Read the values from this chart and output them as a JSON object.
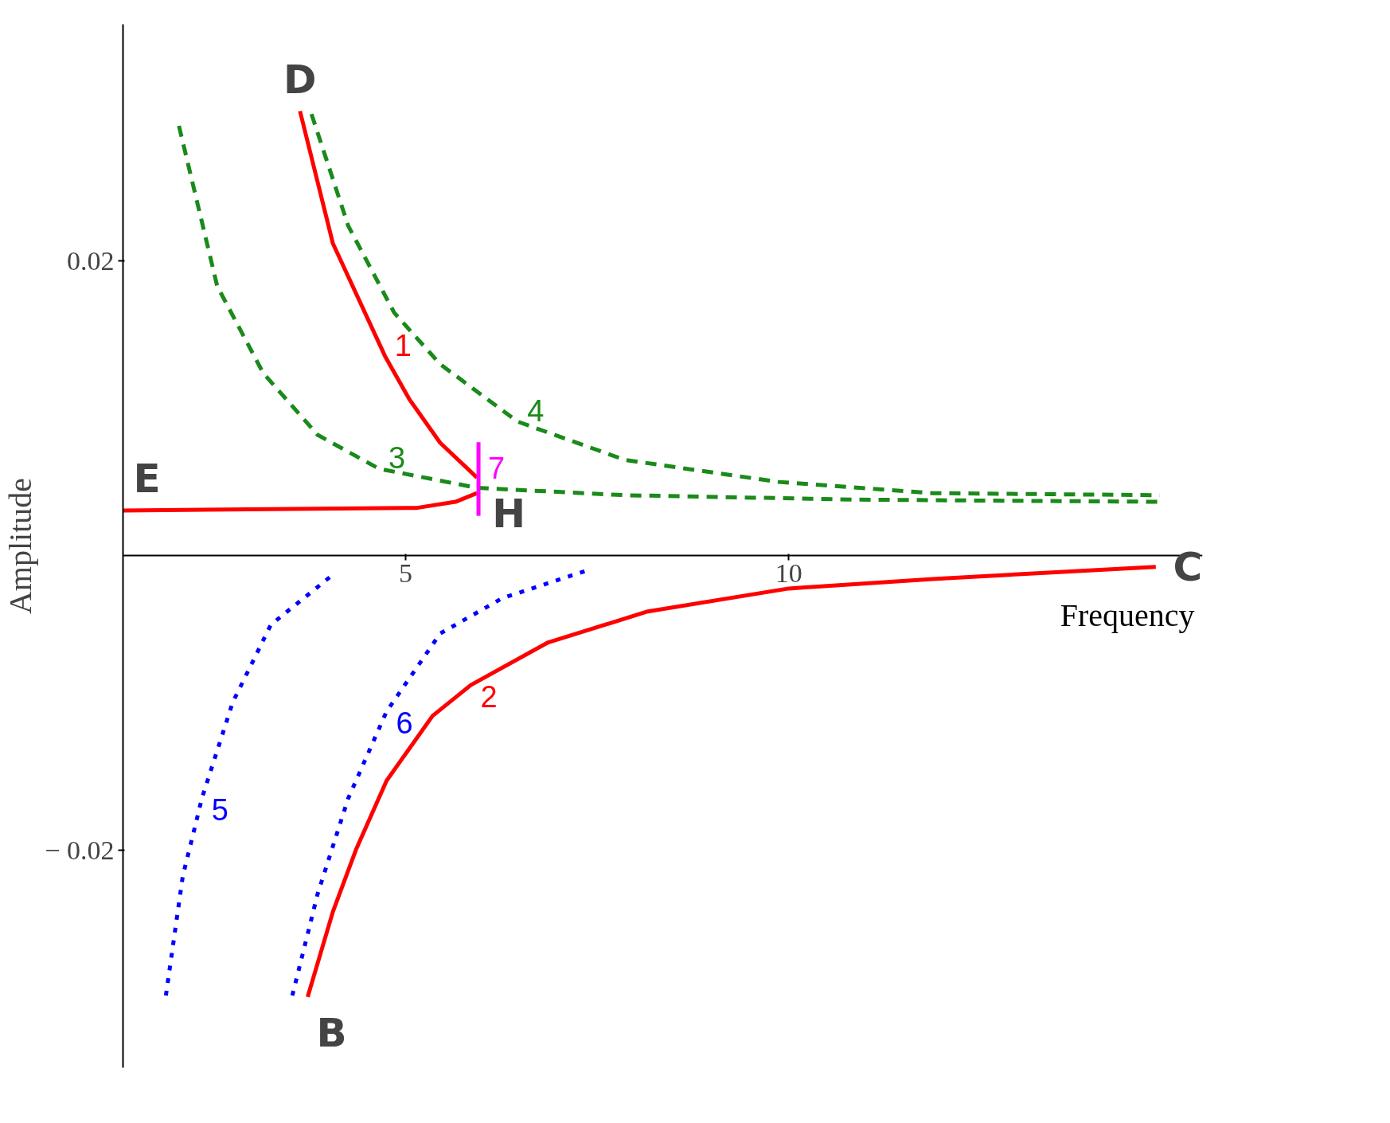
{
  "chart_data": {
    "type": "line",
    "xlabel": "Frequency",
    "ylabel": "Amplitude",
    "xlim": [
      1.31,
      15.4
    ],
    "ylim": [
      -0.0348,
      0.0361
    ],
    "xticks": [
      5,
      10
    ],
    "yticks": [
      0.02,
      {
        "value": -0.02,
        "label": "− 0.02"
      }
    ],
    "grid": false,
    "marker": "none",
    "series": [
      {
        "name": "1",
        "color": "#ff0000",
        "line_style": "solid",
        "x": [
          3.62,
          4.05,
          4.73,
          5.05,
          5.45,
          5.93
        ],
        "values": [
          0.0302,
          0.0212,
          0.01355,
          0.0106,
          0.00766,
          0.0053
        ]
      },
      {
        "color": "#ff0000",
        "line_style": "solid",
        "x": [
          1.31,
          5.15,
          5.65,
          5.93
        ],
        "values": [
          0.00306,
          0.00324,
          0.00365,
          0.00424
        ]
      },
      {
        "name": "2",
        "color": "#ff0000",
        "line_style": "solid",
        "x": [
          3.72,
          4.05,
          4.35,
          4.75,
          5.35,
          5.85,
          6.86,
          8.16,
          10,
          11.88,
          14.79
        ],
        "values": [
          -0.03,
          -0.0242,
          -0.02,
          -0.0153,
          -0.0109,
          -0.0088,
          -0.0059,
          -0.0038,
          -0.00224,
          -0.00159,
          -0.00077
        ]
      },
      {
        "name": "3",
        "color": "#1a8a1a",
        "line_style": "dashed",
        "x": [
          2.04,
          2.54,
          3.14,
          3.85,
          4.65,
          5.93,
          7.86,
          10.87,
          14.84
        ],
        "values": [
          0.0292,
          0.0183,
          0.0124,
          0.0082,
          0.0059,
          0.0046,
          0.0041,
          0.0038,
          0.00365
        ]
      },
      {
        "name": "4",
        "color": "#1a8a1a",
        "line_style": "dashed",
        "x": [
          3.77,
          4.25,
          4.85,
          5.45,
          6.46,
          7.86,
          9.87,
          11.88,
          14.84
        ],
        "values": [
          0.03,
          0.0224,
          0.0165,
          0.013,
          0.0091,
          0.0065,
          0.005,
          0.00424,
          0.0041
        ]
      },
      {
        "name": "5",
        "color": "#0000ff",
        "line_style": "dotted",
        "x": [
          1.87,
          2.09,
          2.34,
          2.74,
          3.24,
          4.05
        ],
        "values": [
          -0.0299,
          -0.0218,
          -0.0165,
          -0.01,
          -0.0047,
          -0.0013
        ]
      },
      {
        "name": "6",
        "color": "#0000ff",
        "line_style": "dotted",
        "x": [
          3.52,
          3.85,
          4.25,
          4.75,
          5.45,
          6.26,
          7.34
        ],
        "values": [
          -0.0299,
          -0.023,
          -0.0165,
          -0.0106,
          -0.0053,
          -0.0029,
          -0.00106
        ]
      },
      {
        "name": "7",
        "color": "#ff00ff",
        "line_style": "solid",
        "x": [
          5.95,
          5.95
        ],
        "values": [
          0.0077,
          0.0027
        ]
      }
    ],
    "annotations": [
      "D",
      "E",
      "H",
      "B",
      "C"
    ]
  }
}
